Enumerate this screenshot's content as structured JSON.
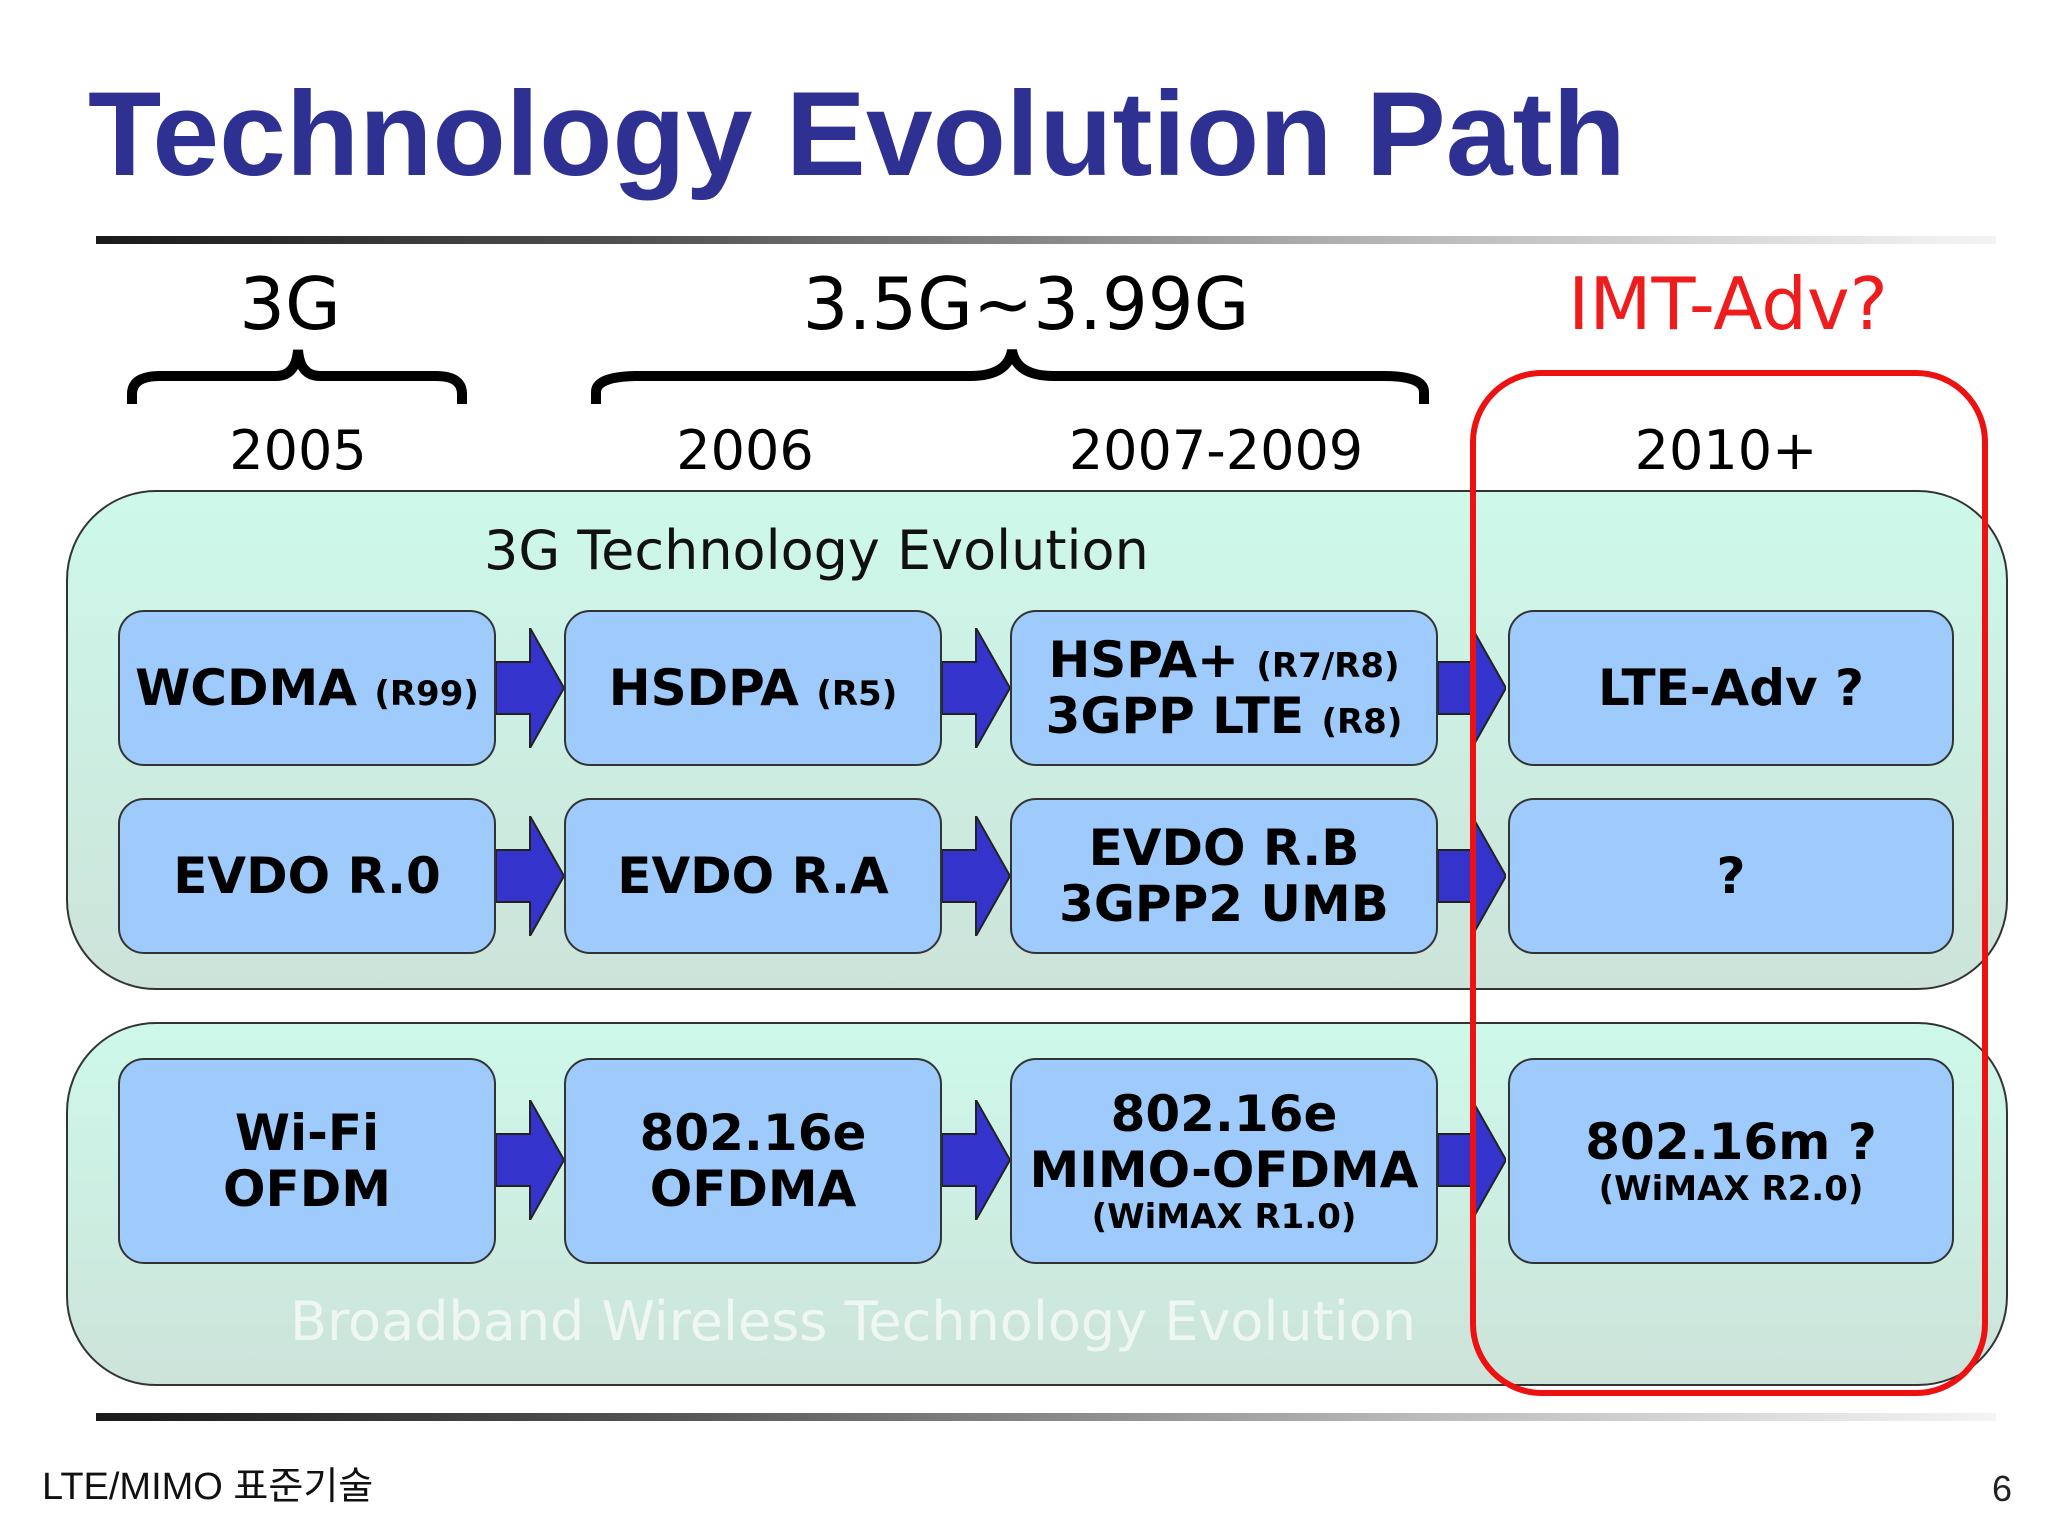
{
  "title": "Technology Evolution Path",
  "generations": {
    "g3": "3G",
    "g35": "3.5G~3.99G",
    "imt": "IMT-Adv?"
  },
  "years": [
    "2005",
    "2006",
    "2007-2009",
    "2010+"
  ],
  "panels": {
    "cellular_label": "3G Technology Evolution",
    "broadband_label": "Broadband Wireless Technology Evolution"
  },
  "rows": [
    [
      {
        "main": "WCDMA",
        "sub": "(R99)"
      },
      {
        "main": "HSDPA",
        "sub": "(R5)"
      },
      {
        "line1_main": "HSPA+",
        "line1_sub": "(R7/R8)",
        "line2_main": "3GPP LTE",
        "line2_sub": "(R8)"
      },
      {
        "main": "LTE-Adv ?"
      }
    ],
    [
      {
        "main": "EVDO R.0"
      },
      {
        "main": "EVDO R.A"
      },
      {
        "line1": "EVDO R.B",
        "line2": "3GPP2 UMB"
      },
      {
        "main": "?"
      }
    ],
    [
      {
        "line1": "Wi-Fi",
        "line2": "OFDM"
      },
      {
        "line1": "802.16e",
        "line2": "OFDMA"
      },
      {
        "line1": "802.16e",
        "line2": "MIMO-OFDMA",
        "line3": "(WiMAX R1.0)"
      },
      {
        "line1": "802.16m ?",
        "line2": "(WiMAX R2.0)"
      }
    ]
  ],
  "colors": {
    "title": "#2e3192",
    "highlight": "#ee1c1c",
    "box_fill": "#9ecbfb",
    "arrow_fill": "#3434cc"
  },
  "footer": {
    "text": "LTE/MIMO 표준기술",
    "page": "6"
  }
}
